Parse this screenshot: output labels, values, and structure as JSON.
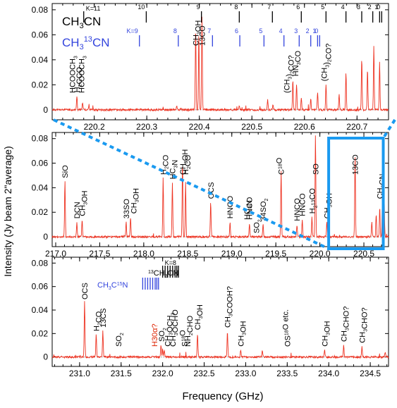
{
  "figure": {
    "ylabel": "Intensity (Jy beam 2\"average)",
    "xlabel": "Frequency (GHz)"
  },
  "colors": {
    "spectrum": "#ee3322",
    "label_black": "#000000",
    "label_blue": "#3344dd",
    "label_red": "#dd2200",
    "highlight_box": "#1a9af0"
  },
  "chart_data": [
    {
      "type": "line",
      "panel": "top",
      "xlim": [
        220.12,
        220.76
      ],
      "ylim": [
        -0.008,
        0.085
      ],
      "xticks": [
        "220.2",
        "220.3",
        "220.4",
        "220.5",
        "220.6",
        "220.7"
      ],
      "yticks": [
        "0",
        "0.02",
        "0.04",
        "0.06",
        "0.08"
      ],
      "ladders": [
        {
          "name": "CH3CN",
          "color": "black",
          "prefix_label": "K=11",
          "rungs": [
            {
              "k": "",
              "x": 220.18
            },
            {
              "k": "10",
              "x": 220.299
            },
            {
              "k": "9",
              "x": 220.404
            },
            {
              "k": "8",
              "x": 220.476
            },
            {
              "k": "7",
              "x": 220.539
            },
            {
              "k": "6",
              "x": 220.594
            },
            {
              "k": "5",
              "x": 220.641
            },
            {
              "k": "4",
              "x": 220.679
            },
            {
              "k": "3",
              "x": 220.709
            },
            {
              "k": "2",
              "x": 220.73
            },
            {
              "k": "1",
              "x": 220.743
            },
            {
              "k": "0",
              "x": 220.747
            }
          ]
        },
        {
          "name": "CH3 13CN",
          "color": "blue",
          "rungs": [
            {
              "k": "K=9",
              "x": 220.286
            },
            {
              "k": "8",
              "x": 220.36
            },
            {
              "k": "7",
              "x": 220.425
            },
            {
              "k": "6",
              "x": 220.477
            },
            {
              "k": "5",
              "x": 220.523
            },
            {
              "k": "4",
              "x": 220.561
            },
            {
              "k": "3",
              "x": 220.59
            },
            {
              "k": "2",
              "x": 220.612
            },
            {
              "k": "1",
              "x": 220.625
            },
            {
              "k": "0",
              "x": 220.629
            }
          ]
        }
      ],
      "peaks": [
        [
          220.167,
          0.011
        ],
        [
          220.178,
          0.006
        ],
        [
          220.19,
          0.004
        ],
        [
          220.357,
          0.003
        ],
        [
          220.365,
          0.002
        ],
        [
          220.393,
          0.066
        ],
        [
          220.399,
          0.061
        ],
        [
          220.405,
          0.075
        ],
        [
          220.476,
          0.003
        ],
        [
          220.53,
          0.008
        ],
        [
          220.54,
          0.004
        ],
        [
          220.578,
          0.024
        ],
        [
          220.585,
          0.02
        ],
        [
          220.594,
          0.01
        ],
        [
          220.612,
          0.009
        ],
        [
          220.625,
          0.014
        ],
        [
          220.641,
          0.02
        ],
        [
          220.666,
          0.012
        ],
        [
          220.679,
          0.03
        ],
        [
          220.709,
          0.041
        ],
        [
          220.72,
          0.032
        ],
        [
          220.732,
          0.052
        ],
        [
          220.743,
          0.038
        ]
      ],
      "annotations": [
        {
          "text": "HCOOCH",
          "sub": "3",
          "x": 220.158,
          "color": "black"
        },
        {
          "text": "H",
          "sub": "2",
          "text2": "CCO",
          "x": 220.167,
          "color": "black"
        },
        {
          "text": "HCOOCH",
          "sub": "3",
          "x": 220.176,
          "color": "black"
        },
        {
          "text": "CH",
          "sub": "3",
          "text2": "OH",
          "x": 220.393,
          "color": "black"
        },
        {
          "text": "13",
          "text2": "CO",
          "x": 220.405,
          "color": "black"
        },
        {
          "text": "(CH",
          "sub": "3",
          "text2": ")",
          "sub2": "2",
          "text3": "CO?",
          "x": 220.566,
          "color": "black"
        },
        {
          "text": "HN",
          "sub": "3",
          "text2": "CO",
          "x": 220.583,
          "color": "black"
        },
        {
          "text": "(CH",
          "sub": "3",
          "text2": ")",
          "sub2": "2",
          "text3": "CO?",
          "x": 220.637,
          "color": "black"
        }
      ]
    },
    {
      "type": "line",
      "panel": "middle",
      "xlim": [
        216.96,
        220.78
      ],
      "ylim": [
        -0.008,
        0.085
      ],
      "xticks": [
        "217.0",
        "217.5",
        "218.0",
        "218.5",
        "219.0",
        "219.5",
        "220.0",
        "220.5"
      ],
      "yticks": [
        "0",
        "0.02",
        "0.04",
        "0.06",
        "0.08"
      ],
      "peaks": [
        [
          217.105,
          0.045
        ],
        [
          217.24,
          0.012
        ],
        [
          217.3,
          0.014
        ],
        [
          217.8,
          0.012
        ],
        [
          217.85,
          0.016
        ],
        [
          218.22,
          0.048
        ],
        [
          218.325,
          0.044
        ],
        [
          218.44,
          0.061
        ],
        [
          218.475,
          0.044
        ],
        [
          218.76,
          0.028
        ],
        [
          218.98,
          0.012
        ],
        [
          219.2,
          0.011
        ],
        [
          219.355,
          0.01
        ],
        [
          219.56,
          0.053
        ],
        [
          219.74,
          0.01
        ],
        [
          219.8,
          0.014
        ],
        [
          219.91,
          0.016
        ],
        [
          219.95,
          0.083
        ],
        [
          220.08,
          0.012
        ],
        [
          220.4,
          0.067
        ],
        [
          220.59,
          0.012
        ],
        [
          220.64,
          0.018
        ],
        [
          220.68,
          0.024
        ],
        [
          220.71,
          0.028
        ],
        [
          220.73,
          0.031
        ]
      ],
      "annotations": [
        {
          "text": "SiO",
          "x": 217.105,
          "color": "black"
        },
        {
          "text": "DCN",
          "x": 217.24,
          "color": "black"
        },
        {
          "text": "CH",
          "sub": "3",
          "text2": "OH",
          "x": 217.3,
          "color": "black"
        },
        {
          "text": "33",
          "text2": "SO",
          "x": 217.8,
          "color": "black"
        },
        {
          "text": "CH",
          "sub": "3",
          "text2": "OH",
          "x": 217.886,
          "color": "black"
        },
        {
          "text": "H",
          "sub": "2",
          "text2": "CO",
          "x": 218.22,
          "color": "black"
        },
        {
          "text": "HC",
          "sub": "3",
          "text2": "N",
          "x": 218.325,
          "color": "black"
        },
        {
          "text": "CH",
          "sub": "3",
          "text2": "OH",
          "x": 218.44,
          "color": "black"
        },
        {
          "text": "H",
          "sub": "2",
          "text2": "CO",
          "x": 218.475,
          "color": "black"
        },
        {
          "text": "OCS",
          "x": 218.76,
          "color": "black"
        },
        {
          "text": "HNCO",
          "x": 218.98,
          "color": "black"
        },
        {
          "text": "HNCO",
          "x": 219.2,
          "color": "black"
        },
        {
          "text": "HC",
          "sub": "3",
          "text2": "N",
          "x": 219.17,
          "color": "black"
        },
        {
          "text": "SO",
          "sub": "2",
          "x": 219.28,
          "color": "black"
        },
        {
          "text": "34",
          "text2": "SO",
          "sub2": "2",
          "x": 219.355,
          "color": "black"
        },
        {
          "text": "C",
          "sup": "18",
          "text2": "O",
          "x": 219.56,
          "color": "black"
        },
        {
          "text": "HNCO",
          "x": 219.74,
          "color": "black"
        },
        {
          "text": "HNCO",
          "x": 219.8,
          "color": "black"
        },
        {
          "text": "H",
          "sub": "2",
          "text2": "13",
          "text3": "CO",
          "x": 219.91,
          "color": "black"
        },
        {
          "text": "SO",
          "x": 219.95,
          "color": "black"
        },
        {
          "text": "CH",
          "sub": "3",
          "text2": "OH",
          "x": 220.08,
          "color": "black"
        },
        {
          "text": "13",
          "text2": "CO",
          "x": 220.4,
          "color": "black"
        },
        {
          "text": "CH",
          "sub": "3",
          "text2": "CN",
          "x": 220.68,
          "color": "black"
        }
      ]
    },
    {
      "type": "line",
      "panel": "bottom",
      "xlim": [
        230.67,
        234.72
      ],
      "ylim": [
        -0.008,
        0.085
      ],
      "xticks": [
        "231.0",
        "231.5",
        "232.0",
        "232.5",
        "233.0",
        "233.5",
        "234.0",
        "234.5"
      ],
      "yticks": [
        "0",
        "0.02",
        "0.04",
        "0.06",
        "0.08"
      ],
      "ladders": [
        {
          "name": "13CH3CN",
          "color": "black",
          "prefix_label": "K=8",
          "rungs": [
            {
              "x": 232.0
            },
            {
              "x": 232.03
            },
            {
              "x": 232.06
            },
            {
              "x": 232.09
            },
            {
              "x": 232.12
            },
            {
              "x": 232.15
            },
            {
              "x": 232.17
            },
            {
              "x": 232.19
            }
          ]
        },
        {
          "name": "CH3C15N",
          "color": "blue",
          "rungs": [
            {
              "x": 231.76
            },
            {
              "x": 231.79
            },
            {
              "x": 231.82
            },
            {
              "x": 231.85
            },
            {
              "x": 231.88
            },
            {
              "x": 231.91
            },
            {
              "x": 231.93
            },
            {
              "x": 231.95
            }
          ]
        }
      ],
      "peaks": [
        [
          231.06,
          0.048
        ],
        [
          231.2,
          0.019
        ],
        [
          231.28,
          0.022
        ],
        [
          231.98,
          0.01
        ],
        [
          232.0,
          0.007
        ],
        [
          232.02,
          0.006
        ],
        [
          232.42,
          0.02
        ],
        [
          232.78,
          0.022
        ],
        [
          232.94,
          0.006
        ],
        [
          233.2,
          0.005
        ],
        [
          233.95,
          0.006
        ],
        [
          234.18,
          0.01
        ],
        [
          234.4,
          0.009
        ],
        [
          234.68,
          0.004
        ]
      ],
      "annotations": [
        {
          "text": "OCS",
          "x": 231.06,
          "color": "black"
        },
        {
          "text": "H",
          "sub": "2",
          "text2": "CO",
          "x": 231.2,
          "color": "black"
        },
        {
          "text": "13",
          "text2": "CS",
          "x": 231.28,
          "color": "black"
        },
        {
          "text": "SO",
          "sub": "2",
          "x": 231.47,
          "color": "black"
        },
        {
          "text": "H30α?",
          "x": 231.9,
          "color": "red"
        },
        {
          "text": "SO",
          "sub": "2",
          "x": 231.985,
          "color": "black"
        },
        {
          "text": "CH",
          "sub": "3",
          "text2": "OCH",
          "sub2": "3",
          "x": 232.06,
          "color": "black"
        },
        {
          "text": "CH",
          "sub": "3",
          "text2": "OCHO",
          "x": 232.12,
          "color": "black"
        },
        {
          "text": "S",
          "sup": "18",
          "text2": "O",
          "x": 232.26,
          "color": "black"
        },
        {
          "text": "NH",
          "sub": "2",
          "text2": "CHO",
          "x": 232.3,
          "color": "black"
        },
        {
          "text": "CH",
          "sub": "3",
          "text2": "OH",
          "x": 232.42,
          "color": "black"
        },
        {
          "text": "CH",
          "sub": "3",
          "text2": "COOH?",
          "x": 232.78,
          "color": "black"
        },
        {
          "text": "CH",
          "sub": "3",
          "text2": "OH",
          "x": 232.94,
          "color": "black"
        },
        {
          "text": "OS",
          "sup": "18",
          "text2": "O etc.",
          "x": 233.5,
          "color": "black"
        },
        {
          "text": "CH",
          "sub": "3",
          "text2": "OH",
          "x": 233.95,
          "color": "black"
        },
        {
          "text": "CH",
          "sub": "3",
          "text2": "CHO?",
          "x": 234.18,
          "color": "black"
        },
        {
          "text": "CH",
          "sub": "3",
          "text2": "CHO?",
          "x": 234.4,
          "color": "black"
        }
      ]
    }
  ]
}
